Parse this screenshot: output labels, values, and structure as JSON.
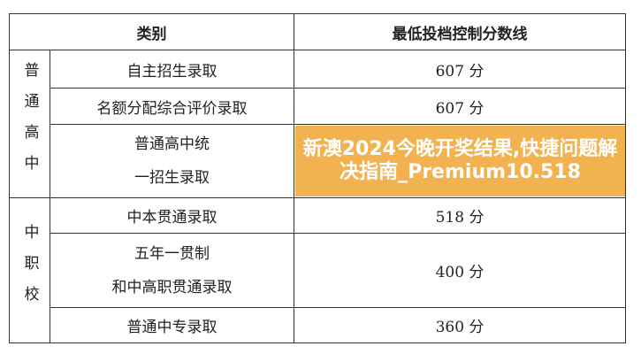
{
  "table": {
    "headers": [
      "类别",
      "最低投档控制分数线"
    ],
    "groups": [
      {
        "label": "普通高中",
        "rows": [
          {
            "category": "自主招生录取",
            "score": "607 分"
          },
          {
            "category": "名额分配综合评价录取",
            "score": "607 分"
          },
          {
            "category": "普通高中统一招生录取",
            "score": ""
          }
        ]
      },
      {
        "label": "中职校",
        "rows": [
          {
            "category": "中本贯通录取",
            "score": "518 分"
          },
          {
            "category_line1": "五年一贯制",
            "category_line2": "和中高职贯通录取",
            "score": "400 分"
          },
          {
            "category": "普通中专录取",
            "score": "360 分"
          }
        ]
      }
    ]
  },
  "overlay": {
    "title": "新澳2024今晚开奖结果,快捷问题解决指南_Premium10.518"
  }
}
